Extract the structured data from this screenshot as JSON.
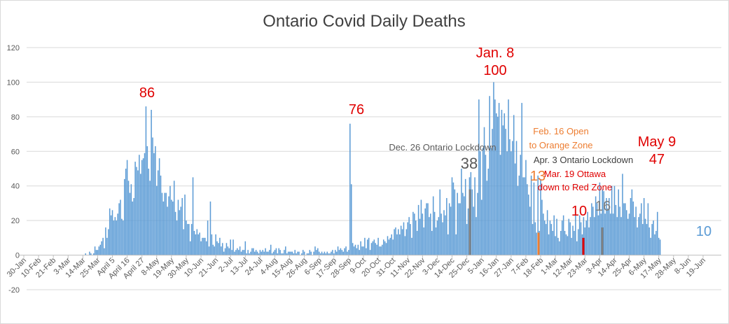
{
  "chart_data": {
    "type": "bar",
    "title": "Ontario Covid Daily Deaths",
    "xlabel": "",
    "ylabel": "",
    "ylim": [
      -20,
      120
    ],
    "yticks": [
      -20,
      0,
      20,
      40,
      60,
      80,
      100,
      120
    ],
    "grid": true,
    "bar_color": "#5b9bd5",
    "x_tick_labels": [
      "30-Jan",
      "10-Feb",
      "21-Feb",
      "3-Mar",
      "14-Mar",
      "25-Mar",
      "April 5",
      "April 16",
      "April 27",
      "8-May",
      "19-May",
      "30-May",
      "10-Jun",
      "21-Jun",
      "2-Jul",
      "13-Jul",
      "24-Jul",
      "4-Aug",
      "15-Aug",
      "26-Aug",
      "6-Sep",
      "17-Sep",
      "28-Sep",
      "9-Oct",
      "20-Oct",
      "31-Oct",
      "11-Nov",
      "22-Nov",
      "3-Dec",
      "14-Dec",
      "25-Dec",
      "5-Jan",
      "16-Jan",
      "27-Jan",
      "7-Feb",
      "18-Feb",
      "1-Mar",
      "12-Mar",
      "23-Mar",
      "3-Apr",
      "14-Apr",
      "25-Apr",
      "6-May",
      "17-May",
      "28-May",
      "8-Jun",
      "19-Jun"
    ],
    "x_tick_step_days": 11,
    "first_bar_day_index": 44,
    "values": [
      0,
      0,
      1,
      0,
      0,
      2,
      1,
      0,
      1,
      5,
      3,
      3,
      5,
      6,
      8,
      10,
      4,
      16,
      10,
      15,
      27,
      23,
      26,
      20,
      22,
      20,
      24,
      30,
      32,
      21,
      20,
      44,
      50,
      55,
      43,
      36,
      41,
      31,
      33,
      54,
      51,
      49,
      58,
      47,
      55,
      56,
      59,
      86,
      63,
      50,
      43,
      84,
      68,
      59,
      63,
      40,
      49,
      56,
      46,
      36,
      31,
      36,
      36,
      28,
      34,
      40,
      32,
      31,
      43,
      25,
      20,
      32,
      26,
      28,
      33,
      15,
      35,
      20,
      18,
      18,
      8,
      18,
      45,
      14,
      12,
      15,
      12,
      13,
      8,
      10,
      10,
      10,
      8,
      20,
      5,
      31,
      12,
      6,
      5,
      12,
      8,
      7,
      10,
      5,
      7,
      2,
      4,
      7,
      5,
      4,
      9,
      3,
      9,
      2,
      3,
      4,
      3,
      5,
      2,
      3,
      3,
      8,
      1,
      3,
      1,
      2,
      4,
      4,
      2,
      3,
      2,
      1,
      3,
      2,
      3,
      2,
      4,
      2,
      2,
      3,
      6,
      1,
      2,
      3,
      4,
      1,
      4,
      3,
      1,
      1,
      3,
      5,
      1,
      2,
      2,
      2,
      2,
      1,
      3,
      1,
      2,
      2,
      0,
      1,
      3,
      2,
      0,
      1,
      1,
      3,
      2,
      0,
      2,
      5,
      3,
      4,
      2,
      1,
      2,
      1,
      2,
      1,
      2,
      1,
      1,
      2,
      3,
      1,
      3,
      2,
      5,
      3,
      4,
      3,
      2,
      4,
      5,
      2,
      3,
      76,
      41,
      7,
      5,
      6,
      4,
      6,
      3,
      8,
      5,
      5,
      10,
      4,
      9,
      10,
      3,
      7,
      8,
      9,
      7,
      6,
      10,
      5,
      5,
      6,
      9,
      8,
      7,
      11,
      9,
      10,
      12,
      9,
      15,
      16,
      12,
      15,
      12,
      17,
      15,
      19,
      11,
      15,
      19,
      22,
      18,
      10,
      25,
      24,
      20,
      14,
      29,
      21,
      32,
      24,
      16,
      27,
      30,
      30,
      22,
      24,
      14,
      34,
      25,
      16,
      20,
      22,
      38,
      24,
      19,
      26,
      23,
      33,
      12,
      30,
      28,
      45,
      42,
      38,
      12,
      36,
      30,
      30,
      50,
      36,
      34,
      44,
      18,
      27,
      45,
      48,
      38,
      28,
      45,
      22,
      36,
      90,
      60,
      32,
      62,
      74,
      58,
      43,
      50,
      92,
      62,
      73,
      100,
      90,
      82,
      80,
      88,
      58,
      84,
      75,
      82,
      73,
      60,
      90,
      67,
      60,
      66,
      81,
      53,
      66,
      40,
      46,
      58,
      88,
      45,
      45,
      55,
      41,
      35,
      28,
      46,
      18,
      42,
      19,
      13,
      46,
      14,
      44,
      32,
      24,
      20,
      18,
      26,
      12,
      20,
      18,
      14,
      23,
      11,
      21,
      10,
      8,
      14,
      20,
      23,
      14,
      12,
      11,
      21,
      19,
      10,
      17,
      14,
      25,
      8,
      15,
      23,
      19,
      12,
      22,
      16,
      20,
      25,
      16,
      22,
      30,
      28,
      22,
      34,
      30,
      23,
      42,
      24,
      38,
      37,
      24,
      33,
      27,
      33,
      24,
      40,
      24,
      40,
      29,
      22,
      38,
      28,
      22,
      47,
      30,
      30,
      26,
      21,
      24,
      33,
      38,
      31,
      22,
      28,
      16,
      22,
      24,
      30,
      18,
      33,
      21,
      18,
      30,
      16,
      10,
      18,
      20,
      12,
      14,
      25,
      10,
      9
    ]
  },
  "annotations": [
    {
      "id": "peak-april",
      "lines": [
        "86"
      ],
      "color": "#e00000",
      "size": 20
    },
    {
      "id": "peak-sept",
      "lines": [
        "76"
      ],
      "color": "#e00000",
      "size": 20
    },
    {
      "id": "peak-jan",
      "lines": [
        "Jan. 8",
        "100"
      ],
      "color": "#e00000",
      "size": 20
    },
    {
      "id": "dec-lockdown-label",
      "lines": [
        "Dec. 26 Ontario Lockdown"
      ],
      "color": "#595959",
      "size": 13
    },
    {
      "id": "dec-lockdown-value",
      "lines": [
        "38"
      ],
      "color": "#595959",
      "size": 22
    },
    {
      "id": "feb-open-label",
      "lines": [
        "Feb. 16 Open",
        "to Orange Zone"
      ],
      "color": "#ed7d31",
      "size": 13
    },
    {
      "id": "feb-open-value",
      "lines": [
        "13"
      ],
      "color": "#ed7d31",
      "size": 20
    },
    {
      "id": "apr-lockdown-label",
      "lines": [
        "Apr. 3 Ontario Lockdown"
      ],
      "color": "#404040",
      "size": 13
    },
    {
      "id": "mar-ottawa-label",
      "lines": [
        "Mar. 19 Ottawa",
        "down to Red Zone"
      ],
      "color": "#e00000",
      "size": 13
    },
    {
      "id": "mar-ottawa-value",
      "lines": [
        "10"
      ],
      "color": "#e00000",
      "size": 20
    },
    {
      "id": "apr-lockdown-value",
      "lines": [
        "16"
      ],
      "color": "#7f7f7f",
      "size": 20
    },
    {
      "id": "may-label",
      "lines": [
        "May 9",
        "47"
      ],
      "color": "#e00000",
      "size": 20
    },
    {
      "id": "latest-value",
      "lines": [
        "10"
      ],
      "color": "#5b9bd5",
      "size": 20
    }
  ],
  "highlight_bars": [
    {
      "id": "dec26",
      "value": 38,
      "color": "#7f7f7f"
    },
    {
      "id": "feb16",
      "value": 13,
      "color": "#ed7d31"
    },
    {
      "id": "mar19",
      "value": 10,
      "color": "#e00000"
    },
    {
      "id": "apr3",
      "value": 16,
      "color": "#7f7f7f"
    }
  ]
}
